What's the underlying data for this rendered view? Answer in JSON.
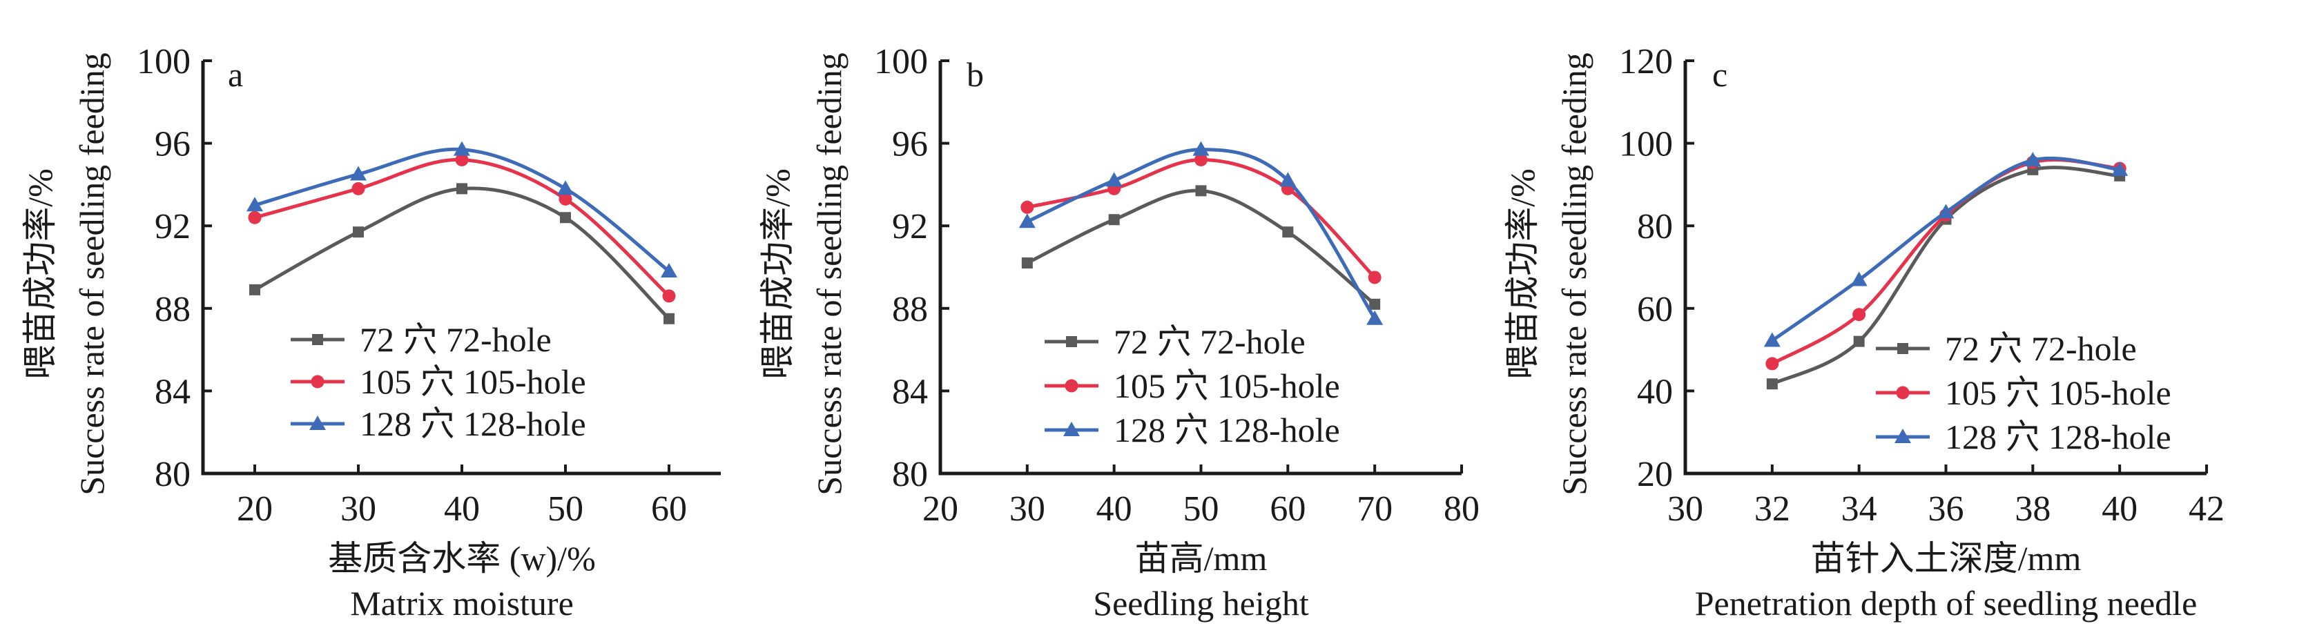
{
  "chart_data": [
    {
      "type": "line",
      "panel_label": "a",
      "title": "",
      "xlabel_cn": "基质含水率 (w)/%",
      "xlabel_en": "Matrix moisture",
      "ylabel_cn": "喂苗成功率/%",
      "ylabel_en": "Success rate of seedling feeding",
      "xlim": [
        15,
        65
      ],
      "ylim": [
        80,
        100
      ],
      "xticks": [
        20,
        30,
        40,
        50,
        60
      ],
      "yticks": [
        80,
        84,
        88,
        92,
        96,
        100
      ],
      "grid": false,
      "smooth": true,
      "legend_position": "lower-center",
      "x": [
        20,
        30,
        40,
        50,
        60
      ],
      "series": [
        {
          "name": "72 穴 72-hole",
          "marker": "square",
          "color": "#5a5a5a",
          "values": [
            88.9,
            91.7,
            93.8,
            92.4,
            87.5
          ]
        },
        {
          "name": "105 穴 105-hole",
          "marker": "circle",
          "color": "#e5334b",
          "values": [
            92.4,
            93.8,
            95.2,
            93.3,
            88.6
          ]
        },
        {
          "name": "128 穴 128-hole",
          "marker": "triangle",
          "color": "#3d6bb8",
          "values": [
            93.0,
            94.5,
            95.7,
            93.8,
            89.8
          ]
        }
      ]
    },
    {
      "type": "line",
      "panel_label": "b",
      "title": "",
      "xlabel_cn": "苗高/mm",
      "xlabel_en": "Seedling height",
      "ylabel_cn": "喂苗成功率/%",
      "ylabel_en": "Success rate of seedling feeding",
      "xlim": [
        20,
        80
      ],
      "ylim": [
        80,
        100
      ],
      "xticks": [
        20,
        30,
        40,
        50,
        60,
        70,
        80
      ],
      "yticks": [
        80,
        84,
        88,
        92,
        96,
        100
      ],
      "grid": false,
      "smooth": true,
      "legend_position": "lower-center",
      "x": [
        30,
        40,
        50,
        60,
        70
      ],
      "series": [
        {
          "name": "72 穴 72-hole",
          "marker": "square",
          "color": "#5a5a5a",
          "values": [
            90.2,
            92.3,
            93.7,
            91.7,
            88.2
          ]
        },
        {
          "name": "105 穴 105-hole",
          "marker": "circle",
          "color": "#e5334b",
          "values": [
            92.9,
            93.8,
            95.2,
            93.8,
            89.5
          ]
        },
        {
          "name": "128 穴 128-hole",
          "marker": "triangle",
          "color": "#3d6bb8",
          "values": [
            92.2,
            94.2,
            95.7,
            94.2,
            87.5
          ]
        }
      ]
    },
    {
      "type": "line",
      "panel_label": "c",
      "title": "",
      "xlabel_cn": "苗针入土深度/mm",
      "xlabel_en": "Penetration depth of seedling needle",
      "ylabel_cn": "喂苗成功率/%",
      "ylabel_en": "Success rate of seedling feeding",
      "xlim": [
        30,
        42
      ],
      "ylim": [
        20,
        120
      ],
      "xticks": [
        30,
        32,
        34,
        36,
        38,
        40,
        42
      ],
      "yticks": [
        20,
        40,
        60,
        80,
        100,
        120
      ],
      "grid": false,
      "smooth": true,
      "legend_position": "lower-right",
      "x": [
        32,
        34,
        36,
        38,
        40
      ],
      "series": [
        {
          "name": "72 穴 72-hole",
          "marker": "square",
          "color": "#5a5a5a",
          "values": [
            41.7,
            52.0,
            81.6,
            93.6,
            92.1
          ]
        },
        {
          "name": "105 穴 105-hole",
          "marker": "circle",
          "color": "#e5334b",
          "values": [
            46.6,
            58.5,
            82.6,
            95.4,
            93.9
          ]
        },
        {
          "name": "128 穴 128-hole",
          "marker": "triangle",
          "color": "#3d6bb8",
          "values": [
            52.2,
            66.9,
            83.3,
            95.9,
            93.6
          ]
        }
      ]
    }
  ]
}
